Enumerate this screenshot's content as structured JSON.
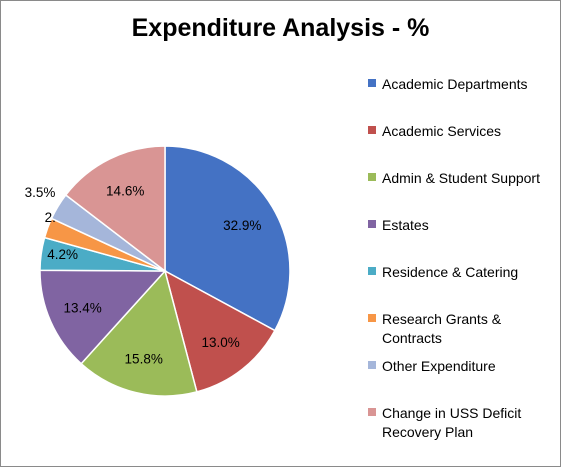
{
  "chart_data": {
    "type": "pie",
    "title": "Expenditure Analysis - %",
    "legend_position": "right",
    "slices": [
      {
        "label": "Academic Departments",
        "value": 32.9,
        "display": "32.9%",
        "color": "#4472C4"
      },
      {
        "label": "Academic Services",
        "value": 13.0,
        "display": "13.0%",
        "color": "#C0504D"
      },
      {
        "label": "Admin & Student Support",
        "value": 15.8,
        "display": "15.8%",
        "color": "#9BBB59"
      },
      {
        "label": "Estates",
        "value": 13.4,
        "display": "13.4%",
        "color": "#8064A2"
      },
      {
        "label": "Residence & Catering",
        "value": 4.2,
        "display": "4.2%",
        "color": "#4BACC6"
      },
      {
        "label": "Research Grants & Contracts",
        "value": 2.6,
        "display": "2.6%",
        "color": "#F79646"
      },
      {
        "label": "Other Expenditure",
        "value": 3.5,
        "display": "3.5%",
        "color": "#A5B6DA"
      },
      {
        "label": "Change in USS Deficit Recovery Plan",
        "value": 14.6,
        "display": "14.6%",
        "color": "#D99594"
      }
    ]
  }
}
